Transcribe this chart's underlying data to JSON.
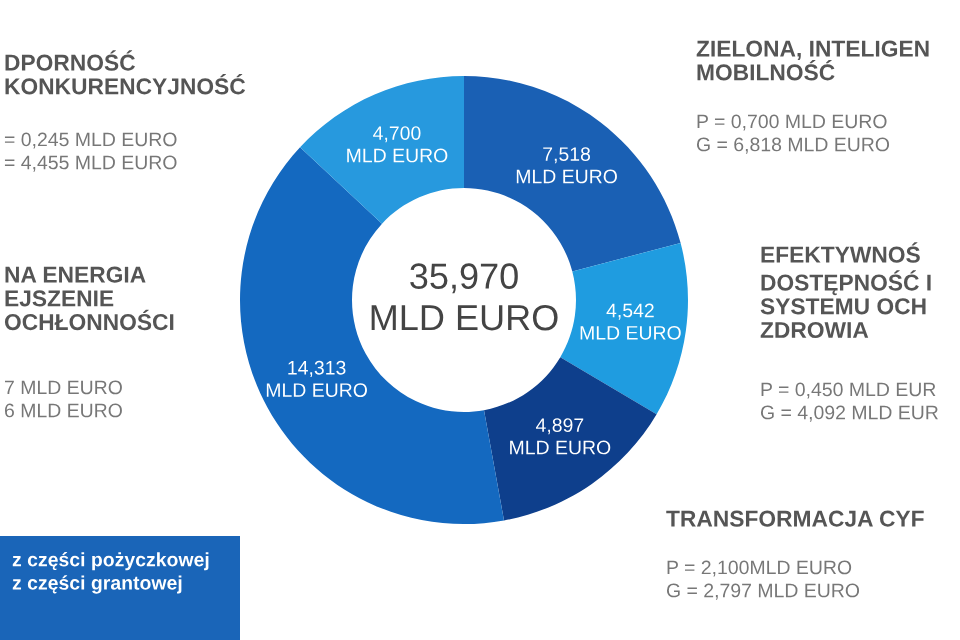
{
  "chart_data": {
    "type": "donut",
    "categories": [
      "ZIELONA, INTELIGEN\nMOBILNOŚĆ",
      "EFEKTYWNOŚ\nDOSTĘPNOŚĆ I\nSYSTEMU OCH\nZDROWIA",
      "TRANSFORMACJA CYF",
      "NA ENERGIA\nEJSZENIE\nOCHŁONNOŚCI",
      "DPORNOŚĆ\nKONKURENCYJNOŚĆ"
    ],
    "values": [
      7.518,
      4.542,
      4.897,
      14.313,
      4.7
    ],
    "colors": [
      "#1a60b4",
      "#1f9ce0",
      "#0e3f8c",
      "#1469c0",
      "#2799de"
    ],
    "value_labels": [
      "7,518\nMLD EURO",
      "4,542\nMLD EURO",
      "4,897\nMLD EURO",
      "14,313\nMLD EURO",
      "4,700\nMLD EURO"
    ],
    "annotations": [
      "35,970\nMLD EURO",
      "P = 0,700 MLD EURO\nG = 6,818 MLD EURO",
      "P = 0,450 MLD EUR\nG = 4,092 MLD EUR",
      "P = 2,100MLD EURO\nG = 2,797 MLD EURO",
      "7 MLD EURO\n6 MLD EURO",
      "= 0,245 MLD EURO\n= 4,455 MLD EURO",
      "z części pożyczkowej\nz części grantowej"
    ]
  }
}
